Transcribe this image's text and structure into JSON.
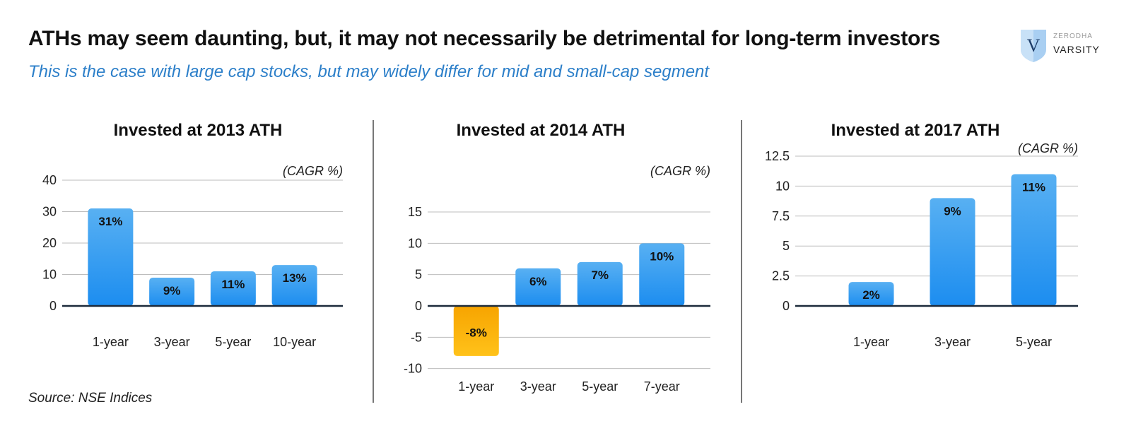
{
  "header": {
    "title": "ATHs may seem daunting, but, it may not necessarily be detrimental for long-term investors",
    "subtitle": "This is the case with large cap stocks, but may widely differ for mid and small-cap segment"
  },
  "logo": {
    "brand_top": "ZERODHA",
    "brand_bottom": "VARSITY",
    "mark": "V"
  },
  "footer": {
    "source": "Source: NSE Indices"
  },
  "colors": {
    "positive_top": "#58b0f2",
    "positive_bottom": "#1c8df0",
    "negative_top": "#ffc21a",
    "negative_bottom": "#f7a400",
    "grid": "#bdbdbd",
    "baseline": "#1c2a3a"
  },
  "chart_data": [
    {
      "type": "bar",
      "title": "Invested at 2013 ATH",
      "unit_label": "(CAGR %)",
      "categories": [
        "1-year",
        "3-year",
        "5-year",
        "10-year"
      ],
      "values": [
        31,
        9,
        11,
        13
      ],
      "data_labels": [
        "31%",
        "9%",
        "11%",
        "13%"
      ],
      "yticks": [
        0,
        10,
        20,
        30,
        40
      ],
      "ytick_labels": [
        "0",
        "10",
        "20",
        "30",
        "40"
      ],
      "ylim": [
        0,
        40
      ],
      "grid": true
    },
    {
      "type": "bar",
      "title": "Invested at 2014 ATH",
      "unit_label": "(CAGR %)",
      "categories": [
        "1-year",
        "3-year",
        "5-year",
        "7-year"
      ],
      "values": [
        -8,
        6,
        7,
        10
      ],
      "data_labels": [
        "-8%",
        "6%",
        "7%",
        "10%"
      ],
      "yticks": [
        -10,
        -5,
        0,
        5,
        10,
        15
      ],
      "ytick_labels": [
        "-10",
        "-5",
        "0",
        "5",
        "10",
        "15"
      ],
      "ylim": [
        -10,
        15
      ],
      "grid": true
    },
    {
      "type": "bar",
      "title": "Invested at 2017 ATH",
      "unit_label": "(CAGR %)",
      "categories": [
        "1-year",
        "3-year",
        "5-year"
      ],
      "values": [
        2,
        9,
        11
      ],
      "data_labels": [
        "2%",
        "9%",
        "11%"
      ],
      "yticks": [
        0,
        2.5,
        5,
        7.5,
        10,
        12.5
      ],
      "ytick_labels": [
        "0",
        "2.5",
        "5",
        "7.5",
        "10",
        "12.5"
      ],
      "ylim": [
        0,
        12.5
      ],
      "grid": true
    }
  ]
}
